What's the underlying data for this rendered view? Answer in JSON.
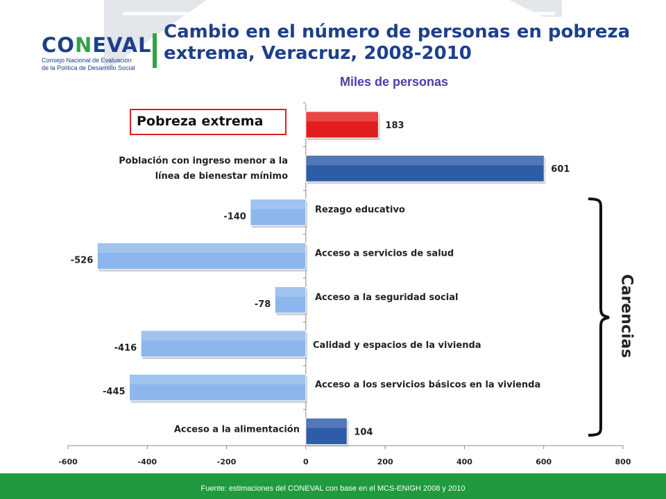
{
  "header": {
    "logo_text_main": "CO",
    "logo_text_accent": "N",
    "logo_text_rest": "EVAL",
    "logo_subtitle_line1": "Consejo Nacional de Evaluación",
    "logo_subtitle_line2": "de la Política de Desarrollo Social",
    "title": "Cambio en el número de personas en pobreza extrema, Veracruz, 2008-2010",
    "subtitle": "Miles de personas"
  },
  "side_label": "Carencias",
  "highlight_label": "Pobreza extrema",
  "footer": {
    "source": "Fuente: estimaciones del CONEVAL con base en el MCS-ENIGH 2008 y 2010"
  },
  "colors": {
    "red": "#e21e1e",
    "dark_blue": "#2d5ca8",
    "light_blue": "#8db7ec",
    "brand_blue": "#1d3f8c",
    "brand_green": "#2ea446"
  },
  "chart_data": {
    "type": "bar",
    "orientation": "horizontal",
    "categories": [
      "Pobreza extrema",
      "Población con ingreso menor a la línea de bienestar mínimo",
      "Rezago educativo",
      "Acceso a servicios de salud",
      "Acceso a  la seguridad social",
      "Calidad y espacios de la vivienda",
      "Acceso a los servicios básicos en la vivienda",
      "Acceso a la alimentación"
    ],
    "values": [
      183,
      601,
      -140,
      -526,
      -78,
      -416,
      -445,
      104
    ],
    "value_labels": [
      "183",
      "601",
      "-140",
      "-526",
      "-78",
      "-416",
      "-445",
      "104"
    ],
    "bar_colors": [
      "red",
      "dark_blue",
      "light_blue",
      "light_blue",
      "light_blue",
      "light_blue",
      "light_blue",
      "dark_blue"
    ],
    "xlim": [
      -600,
      800
    ],
    "xticks": [
      -600,
      -400,
      -200,
      0,
      200,
      400,
      600,
      800
    ],
    "xtick_labels": [
      "-600",
      "-400",
      "-200",
      "0",
      "200",
      "400",
      "600",
      "800"
    ],
    "title": "",
    "xlabel": "",
    "ylabel": "",
    "grid": false,
    "legend": "none"
  }
}
